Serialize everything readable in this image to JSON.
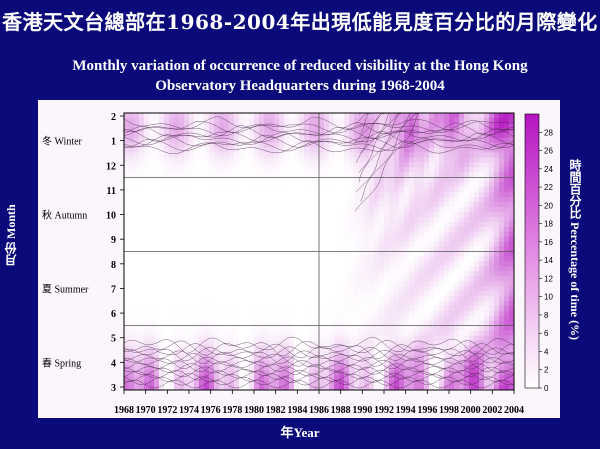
{
  "title_zh": "香港天文台總部在1968-2004年出現低能見度百分比的月際變化",
  "title_en_line1": "Monthly variation of occurrence of reduced visibility at the Hong Kong",
  "title_en_line2": "Observatory Headquarters during 1968-2004",
  "chart_data": {
    "type": "heatmap",
    "title": "Monthly variation of occurrence of reduced visibility at the Hong Kong Observatory Headquarters during 1968-2004",
    "xlabel": "年Year",
    "ylabel": "月份 Month",
    "colorbar_label": "時間百分比 Percentage of time (%)",
    "x_ticks": [
      "1968",
      "1970",
      "1972",
      "1974",
      "1976",
      "1978",
      "1980",
      "1982",
      "1984",
      "1986",
      "1988",
      "1990",
      "1992",
      "1994",
      "1996",
      "1998",
      "2000",
      "2002",
      "2004"
    ],
    "y_ticks": [
      "2",
      "1",
      "12",
      "11",
      "10",
      "9",
      "8",
      "7",
      "6",
      "5",
      "4",
      "3"
    ],
    "y_seasons": [
      {
        "label": "冬 Winter",
        "month": 1
      },
      {
        "label": "秋 Autumn",
        "month": 10
      },
      {
        "label": "夏 Summer",
        "month": 7
      },
      {
        "label": "春 Spring",
        "month": 4
      }
    ],
    "colorbar_ticks": [
      0,
      2,
      4,
      6,
      8,
      10,
      12,
      14,
      16,
      18,
      20,
      22,
      24,
      26,
      28
    ],
    "xlim": [
      1968,
      2004
    ],
    "clim": [
      0,
      30
    ],
    "reference_lines": {
      "year": 1986,
      "months": [
        11.5,
        8.5,
        5.5
      ]
    },
    "colors": {
      "low": "#ffffff",
      "high": "#c020c8",
      "background": "#0a0a7a"
    }
  }
}
